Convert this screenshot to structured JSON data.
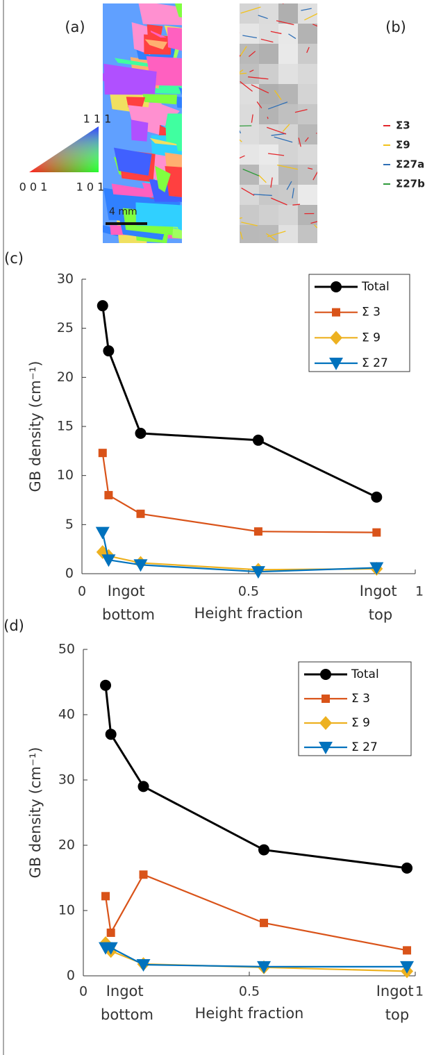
{
  "panels": {
    "a": {
      "label": "(a)",
      "triangle_labels": [
        "1 1 1",
        "0 0 1",
        "1 0 1"
      ],
      "scale_bar": "4 mm"
    },
    "b": {
      "label": "(b)",
      "legend": [
        {
          "name": "Σ3",
          "color": "#e3262b"
        },
        {
          "name": "Σ9",
          "color": "#f2c21b"
        },
        {
          "name": "Σ27a",
          "color": "#2f6fb5"
        },
        {
          "name": "Σ27b",
          "color": "#2e9a3a"
        }
      ]
    }
  },
  "chart_data": [
    {
      "type": "line",
      "label": "(c)",
      "xlabel": "Height fraction",
      "ylabel": "GB density (cm⁻¹)",
      "annotations": [
        "Ingot bottom",
        "Ingot top"
      ],
      "x": [
        0.062,
        0.08,
        0.176,
        0.529,
        0.884
      ],
      "xlim": [
        0,
        1
      ],
      "xticks": [
        0,
        0.5,
        1
      ],
      "ylim": [
        0,
        30
      ],
      "yticks": [
        0,
        5,
        10,
        15,
        20,
        25,
        30
      ],
      "legend": "upper right",
      "series": [
        {
          "name": "Total",
          "color": "#000000",
          "marker": "circle",
          "values": [
            27.3,
            22.7,
            14.3,
            13.6,
            7.8
          ]
        },
        {
          "name": "Σ 3",
          "color": "#d95319",
          "marker": "square",
          "values": [
            12.3,
            8.0,
            6.1,
            4.3,
            4.2
          ]
        },
        {
          "name": "Σ 9",
          "color": "#edb120",
          "marker": "diamond",
          "values": [
            2.2,
            1.8,
            1.1,
            0.4,
            0.5
          ]
        },
        {
          "name": "Σ 27",
          "color": "#0072bd",
          "marker": "triangle-down",
          "values": [
            4.2,
            1.4,
            0.9,
            0.2,
            0.6
          ]
        }
      ]
    },
    {
      "type": "line",
      "label": "(d)",
      "xlabel": "Height fraction",
      "ylabel": "GB density (cm⁻¹)",
      "annotations": [
        "Ingot bottom",
        "Ingot top"
      ],
      "x": [
        0.067,
        0.083,
        0.181,
        0.544,
        0.975
      ],
      "xlim": [
        0,
        1
      ],
      "xticks": [
        0,
        0.5,
        1
      ],
      "ylim": [
        0,
        50
      ],
      "yticks": [
        0,
        10,
        20,
        30,
        40,
        50
      ],
      "legend": "upper right",
      "series": [
        {
          "name": "Total",
          "color": "#000000",
          "marker": "circle",
          "values": [
            44.5,
            37.0,
            29.0,
            19.3,
            16.5
          ]
        },
        {
          "name": "Σ 3",
          "color": "#d95319",
          "marker": "square",
          "values": [
            12.2,
            6.6,
            15.5,
            8.1,
            3.9
          ]
        },
        {
          "name": "Σ 9",
          "color": "#edb120",
          "marker": "diamond",
          "values": [
            5.0,
            3.8,
            1.8,
            1.3,
            0.7
          ]
        },
        {
          "name": "Σ 27",
          "color": "#0072bd",
          "marker": "triangle-down",
          "values": [
            4.3,
            4.3,
            1.7,
            1.4,
            1.4
          ]
        }
      ]
    }
  ]
}
